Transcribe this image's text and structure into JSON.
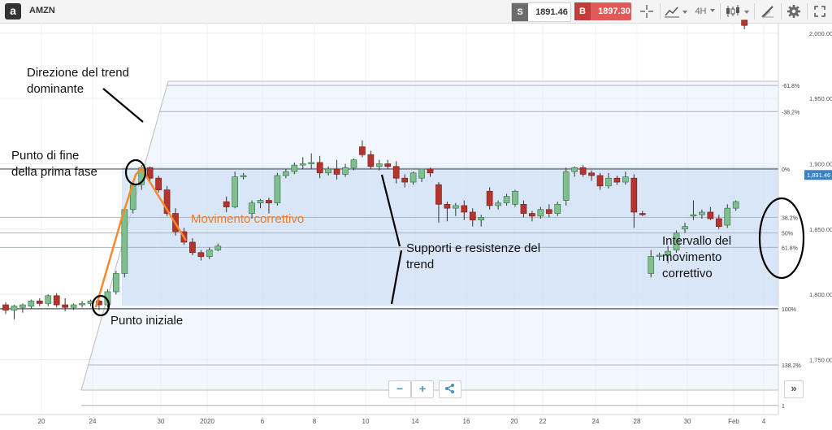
{
  "header": {
    "logo": "a",
    "symbol": "AMZN",
    "sell_tag": "S",
    "sell_price": "1891.46",
    "buy_tag": "B",
    "buy_price": "1897.30",
    "timeframe": "4H",
    "icons": [
      "crosshair-icon",
      "line-chart-icon",
      "candles-icon",
      "draw-icon",
      "gear-icon"
    ]
  },
  "controls": {
    "zoom_out": "−",
    "zoom_in": "+",
    "share": "share-icon",
    "scroll": "»"
  },
  "annotations": [
    {
      "id": "dominant-trend",
      "text": "Direzione del trend\ndominante"
    },
    {
      "id": "end-first-phase",
      "text": "Punto di fine\ndella prima fase"
    },
    {
      "id": "corrective-move",
      "text": "Movimento correttivo"
    },
    {
      "id": "support-resistance",
      "text": "Supporti e resistenze del\ntrend"
    },
    {
      "id": "corrective-range",
      "text": "Intervallo del\nmovimento\ncorrettivo"
    },
    {
      "id": "start-point",
      "text": "Punto iniziale"
    }
  ],
  "chart_data": {
    "type": "candlestick",
    "symbol": "AMZN",
    "last_price": 1891.46,
    "ylim": [
      1708,
      2008
    ],
    "y_ticks": [
      {
        "value": 1750,
        "label": "1,750.00"
      },
      {
        "value": 1800,
        "label": "1,800.00"
      },
      {
        "value": 1850,
        "label": "1,850.00"
      },
      {
        "value": 1900,
        "label": "1,900.00"
      },
      {
        "value": 1950,
        "label": "1,950.00"
      },
      {
        "value": 2000,
        "label": "2,000.00"
      }
    ],
    "x_ticks": [
      "20",
      "24",
      "30",
      "2020",
      "6",
      "8",
      "10",
      "14",
      "16",
      "20",
      "22",
      "24",
      "28",
      "30",
      "Feb",
      "4"
    ],
    "candles": [
      {
        "o": 1792,
        "h": 1794,
        "l": 1785,
        "c": 1788
      },
      {
        "o": 1788,
        "h": 1792,
        "l": 1781,
        "c": 1791
      },
      {
        "o": 1790,
        "h": 1793,
        "l": 1786,
        "c": 1792
      },
      {
        "o": 1791,
        "h": 1796,
        "l": 1789,
        "c": 1795
      },
      {
        "o": 1795,
        "h": 1797,
        "l": 1791,
        "c": 1793
      },
      {
        "o": 1793,
        "h": 1800,
        "l": 1791,
        "c": 1799
      },
      {
        "o": 1799,
        "h": 1801,
        "l": 1790,
        "c": 1792
      },
      {
        "o": 1792,
        "h": 1797,
        "l": 1787,
        "c": 1790
      },
      {
        "o": 1790,
        "h": 1793,
        "l": 1788,
        "c": 1792
      },
      {
        "o": 1792,
        "h": 1795,
        "l": 1790,
        "c": 1793
      },
      {
        "o": 1793,
        "h": 1796,
        "l": 1791,
        "c": 1795
      },
      {
        "o": 1795,
        "h": 1796,
        "l": 1788,
        "c": 1792
      },
      {
        "o": 1792,
        "h": 1804,
        "l": 1790,
        "c": 1802
      },
      {
        "o": 1802,
        "h": 1818,
        "l": 1800,
        "c": 1816
      },
      {
        "o": 1816,
        "h": 1867,
        "l": 1813,
        "c": 1865
      },
      {
        "o": 1865,
        "h": 1886,
        "l": 1862,
        "c": 1884
      },
      {
        "o": 1884,
        "h": 1899,
        "l": 1880,
        "c": 1897
      },
      {
        "o": 1897,
        "h": 1898,
        "l": 1887,
        "c": 1889
      },
      {
        "o": 1889,
        "h": 1891,
        "l": 1878,
        "c": 1880
      },
      {
        "o": 1880,
        "h": 1883,
        "l": 1860,
        "c": 1862
      },
      {
        "o": 1862,
        "h": 1866,
        "l": 1845,
        "c": 1848
      },
      {
        "o": 1848,
        "h": 1851,
        "l": 1838,
        "c": 1840
      },
      {
        "o": 1840,
        "h": 1843,
        "l": 1830,
        "c": 1832
      },
      {
        "o": 1832,
        "h": 1834,
        "l": 1826,
        "c": 1829
      },
      {
        "o": 1829,
        "h": 1836,
        "l": 1827,
        "c": 1834
      },
      {
        "o": 1834,
        "h": 1839,
        "l": 1833,
        "c": 1837
      },
      {
        "o": 1871,
        "h": 1875,
        "l": 1863,
        "c": 1867
      },
      {
        "o": 1867,
        "h": 1894,
        "l": 1866,
        "c": 1890
      },
      {
        "o": 1890,
        "h": 1893,
        "l": 1888,
        "c": 1891
      },
      {
        "o": 1862,
        "h": 1872,
        "l": 1858,
        "c": 1870
      },
      {
        "o": 1870,
        "h": 1873,
        "l": 1866,
        "c": 1872
      },
      {
        "o": 1872,
        "h": 1874,
        "l": 1862,
        "c": 1870
      },
      {
        "o": 1870,
        "h": 1893,
        "l": 1868,
        "c": 1891
      },
      {
        "o": 1891,
        "h": 1896,
        "l": 1889,
        "c": 1894
      },
      {
        "o": 1894,
        "h": 1901,
        "l": 1892,
        "c": 1899
      },
      {
        "o": 1899,
        "h": 1905,
        "l": 1896,
        "c": 1900
      },
      {
        "o": 1900,
        "h": 1908,
        "l": 1896,
        "c": 1901
      },
      {
        "o": 1901,
        "h": 1906,
        "l": 1889,
        "c": 1893
      },
      {
        "o": 1893,
        "h": 1898,
        "l": 1891,
        "c": 1896
      },
      {
        "o": 1896,
        "h": 1903,
        "l": 1888,
        "c": 1892
      },
      {
        "o": 1892,
        "h": 1900,
        "l": 1890,
        "c": 1897
      },
      {
        "o": 1897,
        "h": 1904,
        "l": 1895,
        "c": 1903
      },
      {
        "o": 1913,
        "h": 1918,
        "l": 1905,
        "c": 1907
      },
      {
        "o": 1907,
        "h": 1910,
        "l": 1896,
        "c": 1898
      },
      {
        "o": 1898,
        "h": 1903,
        "l": 1895,
        "c": 1900
      },
      {
        "o": 1900,
        "h": 1903,
        "l": 1896,
        "c": 1898
      },
      {
        "o": 1898,
        "h": 1902,
        "l": 1885,
        "c": 1889
      },
      {
        "o": 1889,
        "h": 1892,
        "l": 1882,
        "c": 1886
      },
      {
        "o": 1886,
        "h": 1894,
        "l": 1884,
        "c": 1893
      },
      {
        "o": 1889,
        "h": 1896,
        "l": 1886,
        "c": 1896
      },
      {
        "o": 1896,
        "h": 1897,
        "l": 1890,
        "c": 1893
      },
      {
        "o": 1884,
        "h": 1886,
        "l": 1855,
        "c": 1869
      },
      {
        "o": 1869,
        "h": 1871,
        "l": 1856,
        "c": 1866
      },
      {
        "o": 1866,
        "h": 1870,
        "l": 1860,
        "c": 1868
      },
      {
        "o": 1868,
        "h": 1872,
        "l": 1857,
        "c": 1863
      },
      {
        "o": 1863,
        "h": 1866,
        "l": 1852,
        "c": 1857
      },
      {
        "o": 1857,
        "h": 1861,
        "l": 1852,
        "c": 1859
      },
      {
        "o": 1879,
        "h": 1882,
        "l": 1865,
        "c": 1868
      },
      {
        "o": 1868,
        "h": 1872,
        "l": 1865,
        "c": 1870
      },
      {
        "o": 1870,
        "h": 1877,
        "l": 1868,
        "c": 1875
      },
      {
        "o": 1869,
        "h": 1880,
        "l": 1867,
        "c": 1879
      },
      {
        "o": 1869,
        "h": 1872,
        "l": 1859,
        "c": 1862
      },
      {
        "o": 1862,
        "h": 1864,
        "l": 1856,
        "c": 1860
      },
      {
        "o": 1860,
        "h": 1867,
        "l": 1858,
        "c": 1865
      },
      {
        "o": 1865,
        "h": 1869,
        "l": 1859,
        "c": 1862
      },
      {
        "o": 1862,
        "h": 1871,
        "l": 1860,
        "c": 1869
      },
      {
        "o": 1872,
        "h": 1897,
        "l": 1868,
        "c": 1894
      },
      {
        "o": 1894,
        "h": 1898,
        "l": 1890,
        "c": 1897
      },
      {
        "o": 1897,
        "h": 1899,
        "l": 1890,
        "c": 1892
      },
      {
        "o": 1893,
        "h": 1895,
        "l": 1887,
        "c": 1891
      },
      {
        "o": 1891,
        "h": 1893,
        "l": 1880,
        "c": 1883
      },
      {
        "o": 1883,
        "h": 1893,
        "l": 1881,
        "c": 1889
      },
      {
        "o": 1889,
        "h": 1891,
        "l": 1884,
        "c": 1886
      },
      {
        "o": 1886,
        "h": 1894,
        "l": 1884,
        "c": 1890
      },
      {
        "o": 1889,
        "h": 1892,
        "l": 1851,
        "c": 1863
      },
      {
        "o": 1862,
        "h": 1864,
        "l": 1860,
        "c": 1861
      },
      {
        "o": 1816,
        "h": 1834,
        "l": 1813,
        "c": 1829
      },
      {
        "o": 1829,
        "h": 1832,
        "l": 1826,
        "c": 1830
      },
      {
        "o": 1830,
        "h": 1837,
        "l": 1824,
        "c": 1833
      },
      {
        "o": 1834,
        "h": 1849,
        "l": 1832,
        "c": 1847
      },
      {
        "o": 1850,
        "h": 1855,
        "l": 1847,
        "c": 1852
      },
      {
        "o": 1860,
        "h": 1872,
        "l": 1857,
        "c": 1861
      },
      {
        "o": 1861,
        "h": 1865,
        "l": 1858,
        "c": 1863
      },
      {
        "o": 1863,
        "h": 1867,
        "l": 1857,
        "c": 1858
      },
      {
        "o": 1858,
        "h": 1861,
        "l": 1850,
        "c": 1852
      },
      {
        "o": 1853,
        "h": 1869,
        "l": 1851,
        "c": 1866
      },
      {
        "o": 1866,
        "h": 1872,
        "l": 1864,
        "c": 1871
      },
      {
        "o": 2010,
        "h": 2010,
        "l": 2003,
        "c": 2006
      }
    ],
    "fibonacci_levels": [
      {
        "label": "-61.8%",
        "value": 1960
      },
      {
        "label": "-38.2%",
        "value": 1940
      },
      {
        "label": "0%",
        "value": 1896
      },
      {
        "label": "38.2%",
        "value": 1859
      },
      {
        "label": "50%",
        "value": 1847
      },
      {
        "label": "61.8%",
        "value": 1836
      },
      {
        "label": "100%",
        "value": 1789
      },
      {
        "label": "138.2%",
        "value": 1746
      },
      {
        "label": "1",
        "value": 1715
      }
    ],
    "fib_range": {
      "high": 1896,
      "low": 1789
    },
    "price_label": "1,891.46"
  }
}
